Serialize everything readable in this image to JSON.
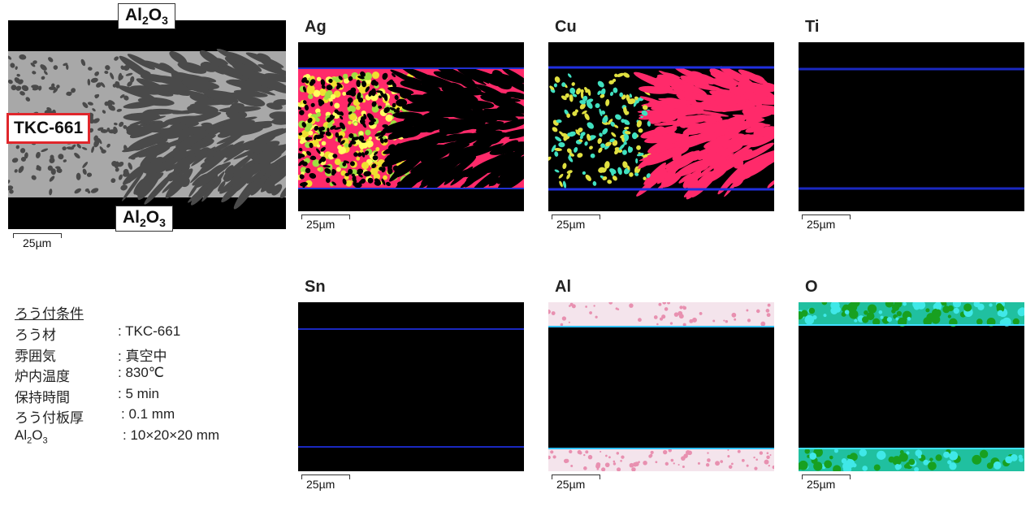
{
  "sem": {
    "top_label": "Al2O3",
    "bottom_label": "Al2O3",
    "material_label": "TKC-661",
    "scale": "25µm",
    "accent": "#e0262b"
  },
  "maps": [
    {
      "element": "Ag",
      "scale": "25µm"
    },
    {
      "element": "Cu",
      "scale": "25µm"
    },
    {
      "element": "Ti",
      "scale": "25µm"
    },
    {
      "element": "Sn",
      "scale": "25µm"
    },
    {
      "element": "Al",
      "scale": "25µm"
    },
    {
      "element": "O",
      "scale": "25µm"
    }
  ],
  "conditions": {
    "title": "ろう付条件",
    "rows": [
      {
        "key": "ろう材",
        "value": ": TKC-661"
      },
      {
        "key": "雰囲気",
        "value": ": 真空中"
      },
      {
        "key": "炉内温度",
        "value": ": 830℃"
      },
      {
        "key": "保持時間",
        "value": ": 5 min"
      },
      {
        "key": "ろう付板厚",
        "value": ": 0.1 mm"
      },
      {
        "key": "Al2O3",
        "value": ": 10×20×20 mm"
      }
    ]
  }
}
